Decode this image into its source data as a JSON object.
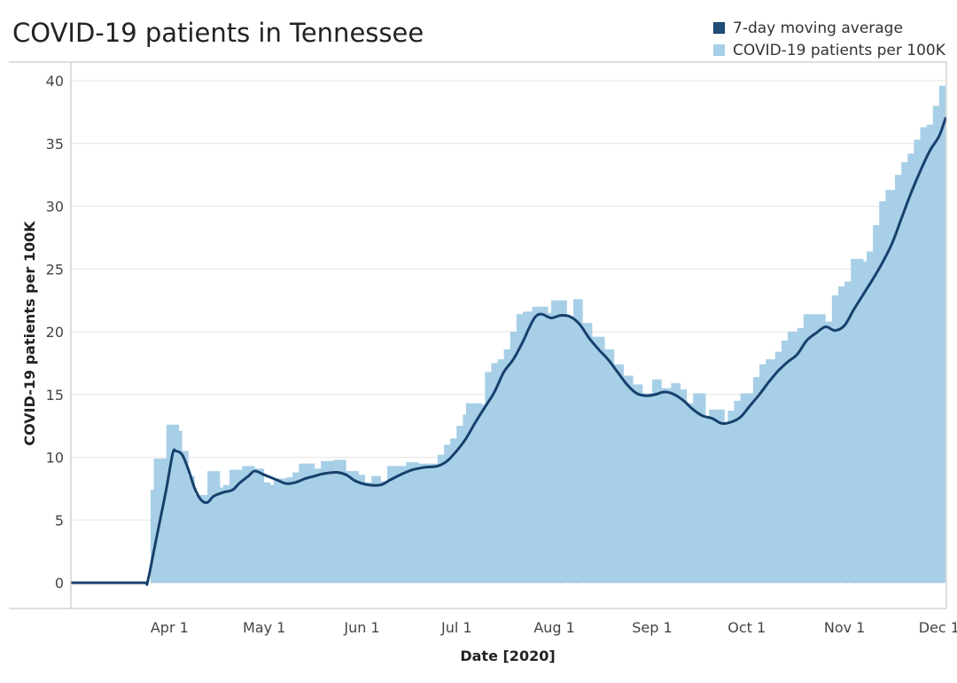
{
  "chart_data": {
    "type": "area",
    "title": "COVID-19 patients in Tennessee",
    "xlabel": "Date [2020]",
    "ylabel": "COVID-19 patients per 100K",
    "ylim": [
      0,
      42
    ],
    "xlim": [
      "2020-03-01",
      "2020-12-03"
    ],
    "yticks": [
      0,
      5,
      10,
      15,
      20,
      25,
      30,
      35,
      40
    ],
    "xticks": [
      {
        "date": "2020-04-01",
        "label": "Apr 1"
      },
      {
        "date": "2020-05-01",
        "label": "May 1"
      },
      {
        "date": "2020-06-01",
        "label": "Jun 1"
      },
      {
        "date": "2020-07-01",
        "label": "Jul 1"
      },
      {
        "date": "2020-08-01",
        "label": "Aug 1"
      },
      {
        "date": "2020-09-01",
        "label": "Sep 1"
      },
      {
        "date": "2020-10-01",
        "label": "Oct 1"
      },
      {
        "date": "2020-11-01",
        "label": "Nov 1"
      },
      {
        "date": "2020-12-01",
        "label": "Dec 1"
      }
    ],
    "grid": true,
    "legend_position": "top-right",
    "series": [
      {
        "name": "7-day moving average",
        "type": "line",
        "color": "#17406d",
        "points": [
          [
            "2020-03-01",
            0
          ],
          [
            "2020-03-16",
            0
          ],
          [
            "2020-03-24",
            0
          ],
          [
            "2020-03-25",
            0.05
          ],
          [
            "2020-03-27",
            2.5
          ],
          [
            "2020-03-29",
            5.0
          ],
          [
            "2020-03-31",
            7.5
          ],
          [
            "2020-04-02",
            10.3
          ],
          [
            "2020-04-03",
            10.5
          ],
          [
            "2020-04-05",
            10.2
          ],
          [
            "2020-04-07",
            9.0
          ],
          [
            "2020-04-09",
            7.5
          ],
          [
            "2020-04-11",
            6.6
          ],
          [
            "2020-04-13",
            6.4
          ],
          [
            "2020-04-15",
            6.9
          ],
          [
            "2020-04-18",
            7.2
          ],
          [
            "2020-04-21",
            7.4
          ],
          [
            "2020-04-23",
            7.9
          ],
          [
            "2020-04-26",
            8.5
          ],
          [
            "2020-04-28",
            8.9
          ],
          [
            "2020-05-01",
            8.6
          ],
          [
            "2020-05-05",
            8.2
          ],
          [
            "2020-05-08",
            7.9
          ],
          [
            "2020-05-11",
            8.0
          ],
          [
            "2020-05-14",
            8.3
          ],
          [
            "2020-05-17",
            8.5
          ],
          [
            "2020-05-20",
            8.7
          ],
          [
            "2020-05-24",
            8.8
          ],
          [
            "2020-05-27",
            8.6
          ],
          [
            "2020-05-30",
            8.1
          ],
          [
            "2020-06-03",
            7.8
          ],
          [
            "2020-06-07",
            7.8
          ],
          [
            "2020-06-10",
            8.2
          ],
          [
            "2020-06-14",
            8.7
          ],
          [
            "2020-06-17",
            9.0
          ],
          [
            "2020-06-21",
            9.2
          ],
          [
            "2020-06-25",
            9.3
          ],
          [
            "2020-06-28",
            9.7
          ],
          [
            "2020-07-01",
            10.5
          ],
          [
            "2020-07-04",
            11.5
          ],
          [
            "2020-07-07",
            12.8
          ],
          [
            "2020-07-10",
            14.0
          ],
          [
            "2020-07-13",
            15.2
          ],
          [
            "2020-07-16",
            16.8
          ],
          [
            "2020-07-19",
            17.8
          ],
          [
            "2020-07-22",
            19.2
          ],
          [
            "2020-07-24",
            20.3
          ],
          [
            "2020-07-26",
            21.2
          ],
          [
            "2020-07-28",
            21.4
          ],
          [
            "2020-07-31",
            21.1
          ],
          [
            "2020-08-03",
            21.3
          ],
          [
            "2020-08-06",
            21.2
          ],
          [
            "2020-08-09",
            20.6
          ],
          [
            "2020-08-12",
            19.5
          ],
          [
            "2020-08-15",
            18.6
          ],
          [
            "2020-08-18",
            17.8
          ],
          [
            "2020-08-21",
            16.8
          ],
          [
            "2020-08-24",
            15.8
          ],
          [
            "2020-08-27",
            15.1
          ],
          [
            "2020-08-30",
            14.9
          ],
          [
            "2020-09-02",
            15.0
          ],
          [
            "2020-09-05",
            15.2
          ],
          [
            "2020-09-08",
            15.0
          ],
          [
            "2020-09-11",
            14.5
          ],
          [
            "2020-09-14",
            13.8
          ],
          [
            "2020-09-17",
            13.3
          ],
          [
            "2020-09-20",
            13.1
          ],
          [
            "2020-09-23",
            12.7
          ],
          [
            "2020-09-26",
            12.8
          ],
          [
            "2020-09-29",
            13.2
          ],
          [
            "2020-10-02",
            14.1
          ],
          [
            "2020-10-05",
            15.0
          ],
          [
            "2020-10-08",
            16.0
          ],
          [
            "2020-10-11",
            16.9
          ],
          [
            "2020-10-14",
            17.6
          ],
          [
            "2020-10-17",
            18.2
          ],
          [
            "2020-10-20",
            19.3
          ],
          [
            "2020-10-23",
            19.9
          ],
          [
            "2020-10-26",
            20.4
          ],
          [
            "2020-10-29",
            20.1
          ],
          [
            "2020-11-01",
            20.5
          ],
          [
            "2020-11-04",
            21.8
          ],
          [
            "2020-11-07",
            23.0
          ],
          [
            "2020-11-10",
            24.2
          ],
          [
            "2020-11-13",
            25.5
          ],
          [
            "2020-11-16",
            27.0
          ],
          [
            "2020-11-19",
            29.0
          ],
          [
            "2020-11-22",
            31.0
          ],
          [
            "2020-11-25",
            32.8
          ],
          [
            "2020-11-28",
            34.4
          ],
          [
            "2020-12-01",
            35.6
          ],
          [
            "2020-12-03",
            37.0
          ]
        ]
      },
      {
        "name": "COVID-19 patients per 100K",
        "type": "area",
        "color": "#a7cfe7",
        "points": [
          [
            "2020-03-01",
            0
          ],
          [
            "2020-03-25",
            0
          ],
          [
            "2020-03-26",
            7.4
          ],
          [
            "2020-03-27",
            9.9
          ],
          [
            "2020-03-31",
            12.6
          ],
          [
            "2020-04-04",
            12.1
          ],
          [
            "2020-04-05",
            10.5
          ],
          [
            "2020-04-07",
            8.5
          ],
          [
            "2020-04-09",
            7.0
          ],
          [
            "2020-04-12",
            7.0
          ],
          [
            "2020-04-13",
            8.9
          ],
          [
            "2020-04-17",
            7.6
          ],
          [
            "2020-04-18",
            7.8
          ],
          [
            "2020-04-20",
            9.0
          ],
          [
            "2020-04-24",
            9.3
          ],
          [
            "2020-04-28",
            9.1
          ],
          [
            "2020-05-01",
            8.0
          ],
          [
            "2020-05-03",
            7.8
          ],
          [
            "2020-05-04",
            8.3
          ],
          [
            "2020-05-08",
            8.4
          ],
          [
            "2020-05-10",
            8.8
          ],
          [
            "2020-05-12",
            9.5
          ],
          [
            "2020-05-17",
            9.1
          ],
          [
            "2020-05-19",
            9.7
          ],
          [
            "2020-05-23",
            9.8
          ],
          [
            "2020-05-27",
            8.9
          ],
          [
            "2020-05-31",
            8.6
          ],
          [
            "2020-06-02",
            8.0
          ],
          [
            "2020-06-04",
            8.5
          ],
          [
            "2020-06-07",
            8.1
          ],
          [
            "2020-06-09",
            9.3
          ],
          [
            "2020-06-15",
            9.6
          ],
          [
            "2020-06-19",
            9.5
          ],
          [
            "2020-06-25",
            10.2
          ],
          [
            "2020-06-27",
            11.0
          ],
          [
            "2020-06-29",
            11.5
          ],
          [
            "2020-07-01",
            12.5
          ],
          [
            "2020-07-03",
            13.4
          ],
          [
            "2020-07-04",
            14.3
          ],
          [
            "2020-07-09",
            14.2
          ],
          [
            "2020-07-10",
            16.8
          ],
          [
            "2020-07-12",
            17.5
          ],
          [
            "2020-07-14",
            17.8
          ],
          [
            "2020-07-16",
            18.6
          ],
          [
            "2020-07-18",
            20.0
          ],
          [
            "2020-07-20",
            21.4
          ],
          [
            "2020-07-22",
            21.6
          ],
          [
            "2020-07-25",
            22.0
          ],
          [
            "2020-07-30",
            21.5
          ],
          [
            "2020-07-31",
            22.5
          ],
          [
            "2020-08-05",
            21.2
          ],
          [
            "2020-08-07",
            22.6
          ],
          [
            "2020-08-10",
            20.7
          ],
          [
            "2020-08-13",
            19.6
          ],
          [
            "2020-08-17",
            18.6
          ],
          [
            "2020-08-20",
            17.4
          ],
          [
            "2020-08-23",
            16.5
          ],
          [
            "2020-08-26",
            15.8
          ],
          [
            "2020-08-29",
            15.1
          ],
          [
            "2020-09-01",
            16.2
          ],
          [
            "2020-09-04",
            15.5
          ],
          [
            "2020-09-07",
            15.9
          ],
          [
            "2020-09-10",
            15.4
          ],
          [
            "2020-09-12",
            14.3
          ],
          [
            "2020-09-14",
            15.1
          ],
          [
            "2020-09-18",
            13.2
          ],
          [
            "2020-09-19",
            13.8
          ],
          [
            "2020-09-24",
            12.7
          ],
          [
            "2020-09-25",
            13.7
          ],
          [
            "2020-09-27",
            14.5
          ],
          [
            "2020-09-29",
            15.1
          ],
          [
            "2020-10-03",
            16.4
          ],
          [
            "2020-10-05",
            17.4
          ],
          [
            "2020-10-07",
            17.8
          ],
          [
            "2020-10-10",
            18.4
          ],
          [
            "2020-10-12",
            19.3
          ],
          [
            "2020-10-14",
            20.0
          ],
          [
            "2020-10-17",
            20.3
          ],
          [
            "2020-10-19",
            21.4
          ],
          [
            "2020-10-26",
            20.8
          ],
          [
            "2020-10-28",
            22.9
          ],
          [
            "2020-10-30",
            23.6
          ],
          [
            "2020-11-01",
            24.0
          ],
          [
            "2020-11-03",
            25.8
          ],
          [
            "2020-11-07",
            25.6
          ],
          [
            "2020-11-08",
            26.4
          ],
          [
            "2020-11-10",
            28.5
          ],
          [
            "2020-11-12",
            30.4
          ],
          [
            "2020-11-14",
            31.3
          ],
          [
            "2020-11-17",
            32.5
          ],
          [
            "2020-11-19",
            33.5
          ],
          [
            "2020-11-21",
            34.2
          ],
          [
            "2020-11-23",
            35.3
          ],
          [
            "2020-11-25",
            36.3
          ],
          [
            "2020-11-27",
            36.5
          ],
          [
            "2020-11-29",
            38.0
          ],
          [
            "2020-12-01",
            39.6
          ],
          [
            "2020-12-03",
            39.6
          ]
        ]
      }
    ]
  }
}
